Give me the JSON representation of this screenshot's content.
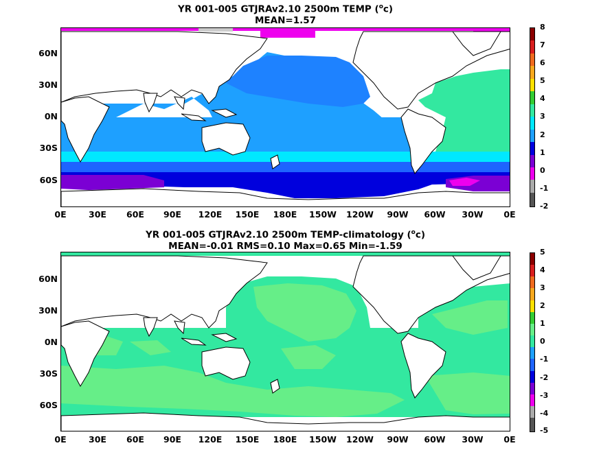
{
  "panels": [
    {
      "title_line1": "YR 001-005 GTJRAv2.10 2500m TEMP (",
      "title_unit_sup": "o",
      "title_unit_tail": "c)",
      "title_line2": "MEAN=1.57",
      "colorbar_labels": [
        "8",
        "7",
        "6",
        "5",
        "4",
        "3",
        "2",
        "1",
        "0",
        "-1",
        "-2"
      ],
      "colorbar_colors": [
        "#8b0000",
        "#d81e1e",
        "#ef6a1e",
        "#f7a81e",
        "#ffe000",
        "#33cc33",
        "#33e8a0",
        "#1ea0ff",
        "#1e64ff",
        "#0000dd",
        "#7b00d4",
        "#ee00ee",
        "#aaaaaa",
        "#555555"
      ]
    },
    {
      "title_line1": "YR 001-005 GTJRAv2.10 2500m TEMP-climatology (",
      "title_unit_sup": "o",
      "title_unit_tail": "c)",
      "title_line2": "MEAN=-0.01   RMS=0.10   Max=0.65   Min=-1.59",
      "colorbar_labels": [
        "5",
        "4",
        "3",
        "2",
        "1",
        "0",
        "-1",
        "-2",
        "-3",
        "-4",
        "-5"
      ],
      "colorbar_colors": [
        "#8b0000",
        "#d81e1e",
        "#ef6a1e",
        "#f7a81e",
        "#ffe000",
        "#33cc33",
        "#66ee88",
        "#33e8a0",
        "#1ea0ff",
        "#1e64ff",
        "#0000dd",
        "#7b00d4",
        "#ee00ee",
        "#aaaaaa",
        "#555555"
      ]
    }
  ],
  "lat_labels": [
    "60N",
    "30N",
    "0N",
    "30S",
    "60S"
  ],
  "lon_labels": [
    "0E",
    "30E",
    "60E",
    "90E",
    "120E",
    "150E",
    "180E",
    "150W",
    "120W",
    "90W",
    "60W",
    "30W",
    "0E"
  ],
  "colors": {
    "ocean_blue": "#1ea0ff",
    "pacific_blue": "#1e82ff",
    "deep_blue": "#1e64ff",
    "navy": "#0000dd",
    "violet": "#7b00d4",
    "magenta": "#ee00ee",
    "cyan": "#00e8ff",
    "aqua_green": "#33e8a0",
    "light_green": "#66ee88",
    "green": "#33cc33",
    "grey": "#cccccc"
  }
}
